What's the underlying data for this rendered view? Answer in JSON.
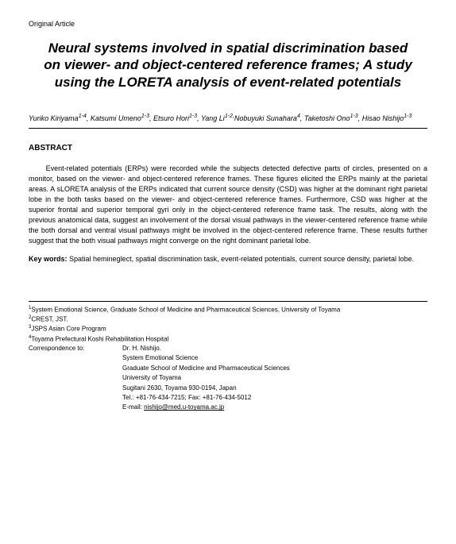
{
  "article_type": "Original  Article",
  "title": "Neural systems involved in spatial discrimination based on viewer- and object-centered reference frames; A study using the LORETA analysis of event-related potentials",
  "authors_html": "Yuriko Kiriyama|1-4|, Katsumi Umeno|1-3|, Etsuro Hori|1-3|, Yang Li|1-2,|Nobuyuki   Sunahara|4|, Taketoshi Ono|1-3|, Hisao Nishijo|1-3|",
  "abstract_heading": "ABSTRACT",
  "abstract_body": "Event-related potentials (ERPs) were recorded while the subjects detected defective parts of circles, presented on a monitor, based on the viewer- and object-centered reference frames. These figures elicited the ERPs mainly at the parietal areas. A sLORETA analysis of the ERPs indicated that current source density (CSD) was higher at the dominant right parietal lobe in the both tasks based on the viewer- and object-centered reference frames. Furthermore, CSD was higher at the superior frontal and superior temporal gyri only in the object-centered reference frame task. The results, along with the previous anatomical data, suggest an involvement of the dorsal visual pathways in the viewer-centered reference frame while the both dorsal and ventral visual pathways might be involved in the object-centered reference frame. These results further suggest that the both visual pathways might converge on the right dominant parietal lobe.",
  "keywords_label": "Key words:",
  "keywords_text": " Spatial hemineglect, spatial discrimination task, event-related potentials, current source density, parietal lobe.",
  "affiliations": [
    {
      "sup": "1",
      "text": "System Emotional Science, Graduate School of Medicine and Pharmaceutical Sciences, University of Toyama"
    },
    {
      "sup": "2",
      "text": "CREST, JST."
    },
    {
      "sup": "3",
      "text": "JSPS Asian Core Program"
    },
    {
      "sup": "4",
      "text": "Toyama Prefectural Koshi Rehabilitation Hospital"
    }
  ],
  "correspondence_label": "Correspondence to:",
  "correspondence_lines": [
    "Dr. H. Nishijo.",
    "System Emotional Science",
    "Graduate School of Medicine and Pharmaceutical Sciences",
    "University of Toyama",
    "Sugitani 2630, Toyama 930-0194, Japan",
    "Tel.: +81-76-434-7215; Fax: +81-76-434-5012"
  ],
  "email_label": "E-mail: ",
  "email": "nishijo@med.u-toyama.ac.jp"
}
